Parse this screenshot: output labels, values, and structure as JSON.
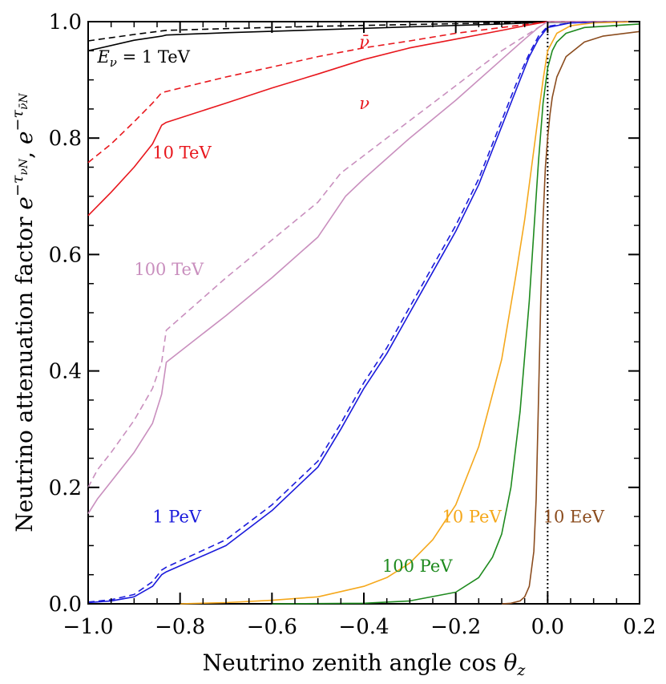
{
  "chart_data": {
    "type": "line",
    "xlabel": "Neutrino zenith angle cos",
    "xlabel_symbol": "θ",
    "xlabel_sub": "z",
    "ylabel": "Neutrino attenuation factor",
    "ylabel_expr1_base": "e",
    "ylabel_expr1_sup": "−τ",
    "ylabel_expr1_sub": "νN",
    "ylabel_sep": ", ",
    "ylabel_expr2_base": "e",
    "ylabel_expr2_sup": "−τ",
    "ylabel_expr2_sub": "ν̄N",
    "xlim": [
      -1.0,
      0.2
    ],
    "ylim": [
      0.0,
      1.0
    ],
    "xticks": [
      -1.0,
      -0.8,
      -0.6,
      -0.4,
      -0.2,
      0.0,
      0.2
    ],
    "xtick_labels": [
      "−1.0",
      "−0.8",
      "−0.6",
      "−0.4",
      "−0.2",
      "0.0",
      "0.2"
    ],
    "yticks": [
      0.0,
      0.2,
      0.4,
      0.6,
      0.8,
      1.0
    ],
    "ytick_labels": [
      "0.0",
      "0.2",
      "0.4",
      "0.6",
      "0.8",
      "1.0"
    ],
    "reference_line": {
      "x": 0.0,
      "style": "dotted",
      "color": "#000000"
    },
    "series": [
      {
        "name": "1 TeV ν",
        "color": "#000000",
        "dash": false,
        "x": [
          -1.0,
          -0.9,
          -0.84,
          -0.83,
          -0.7,
          -0.5,
          -0.3,
          -0.1,
          0.0,
          0.2
        ],
        "y": [
          0.95,
          0.968,
          0.975,
          0.977,
          0.981,
          0.986,
          0.991,
          0.996,
          0.999,
          1.0
        ]
      },
      {
        "name": "1 TeV ν̄",
        "color": "#000000",
        "dash": true,
        "x": [
          -1.0,
          -0.9,
          -0.84,
          -0.83,
          -0.7,
          -0.5,
          -0.3,
          -0.1,
          0.0,
          0.2
        ],
        "y": [
          0.967,
          0.978,
          0.984,
          0.985,
          0.988,
          0.992,
          0.995,
          0.998,
          1.0,
          1.0
        ]
      },
      {
        "name": "10 TeV ν",
        "color": "#e8171d",
        "dash": false,
        "x": [
          -1.0,
          -0.95,
          -0.9,
          -0.86,
          -0.84,
          -0.83,
          -0.7,
          -0.6,
          -0.5,
          -0.4,
          -0.3,
          -0.2,
          -0.1,
          -0.05,
          0.0,
          0.2
        ],
        "y": [
          0.667,
          0.707,
          0.75,
          0.79,
          0.822,
          0.827,
          0.86,
          0.886,
          0.91,
          0.935,
          0.955,
          0.97,
          0.985,
          0.993,
          1.0,
          1.0
        ]
      },
      {
        "name": "10 TeV ν̄",
        "color": "#e8171d",
        "dash": true,
        "x": [
          -1.0,
          -0.95,
          -0.9,
          -0.86,
          -0.84,
          -0.83,
          -0.7,
          -0.6,
          -0.5,
          -0.4,
          -0.3,
          -0.2,
          -0.1,
          0.0,
          0.2
        ],
        "y": [
          0.758,
          0.79,
          0.828,
          0.86,
          0.878,
          0.88,
          0.905,
          0.922,
          0.94,
          0.955,
          0.967,
          0.98,
          0.99,
          1.0,
          1.0
        ]
      },
      {
        "name": "100 TeV ν",
        "color": "#c98fbe",
        "dash": false,
        "x": [
          -1.0,
          -0.98,
          -0.95,
          -0.9,
          -0.86,
          -0.84,
          -0.83,
          -0.7,
          -0.6,
          -0.5,
          -0.44,
          -0.4,
          -0.3,
          -0.2,
          -0.1,
          -0.05,
          -0.02,
          0.0,
          0.2
        ],
        "y": [
          0.155,
          0.18,
          0.21,
          0.26,
          0.31,
          0.36,
          0.415,
          0.495,
          0.56,
          0.63,
          0.7,
          0.73,
          0.8,
          0.865,
          0.935,
          0.97,
          0.99,
          1.0,
          1.0
        ]
      },
      {
        "name": "100 TeV ν̄",
        "color": "#c98fbe",
        "dash": true,
        "x": [
          -1.0,
          -0.98,
          -0.95,
          -0.9,
          -0.86,
          -0.84,
          -0.83,
          -0.7,
          -0.6,
          -0.5,
          -0.45,
          -0.4,
          -0.3,
          -0.2,
          -0.1,
          -0.05,
          0.0,
          0.2
        ],
        "y": [
          0.2,
          0.23,
          0.26,
          0.315,
          0.37,
          0.415,
          0.47,
          0.56,
          0.625,
          0.69,
          0.74,
          0.77,
          0.83,
          0.89,
          0.95,
          0.975,
          1.0,
          1.0
        ]
      },
      {
        "name": "1 PeV ν",
        "color": "#1a1adb",
        "dash": false,
        "x": [
          -1.0,
          -0.95,
          -0.9,
          -0.86,
          -0.84,
          -0.83,
          -0.7,
          -0.6,
          -0.5,
          -0.45,
          -0.4,
          -0.35,
          -0.3,
          -0.25,
          -0.2,
          -0.15,
          -0.1,
          -0.06,
          -0.04,
          -0.02,
          0.0,
          0.05,
          0.2
        ],
        "y": [
          0.002,
          0.005,
          0.012,
          0.03,
          0.05,
          0.055,
          0.1,
          0.16,
          0.235,
          0.3,
          0.37,
          0.43,
          0.5,
          0.57,
          0.64,
          0.72,
          0.82,
          0.9,
          0.94,
          0.97,
          0.99,
          0.998,
          1.0
        ]
      },
      {
        "name": "1 PeV ν̄",
        "color": "#1a1adb",
        "dash": true,
        "x": [
          -1.0,
          -0.95,
          -0.9,
          -0.86,
          -0.84,
          -0.83,
          -0.7,
          -0.6,
          -0.5,
          -0.45,
          -0.4,
          -0.35,
          -0.3,
          -0.25,
          -0.2,
          -0.15,
          -0.1,
          -0.06,
          -0.04,
          -0.02,
          0.0,
          0.05,
          0.2
        ],
        "y": [
          0.003,
          0.007,
          0.016,
          0.038,
          0.058,
          0.063,
          0.11,
          0.17,
          0.245,
          0.31,
          0.38,
          0.44,
          0.51,
          0.58,
          0.65,
          0.73,
          0.83,
          0.91,
          0.945,
          0.975,
          0.992,
          0.998,
          1.0
        ]
      },
      {
        "name": "10 PeV ν",
        "color": "#f5a81c",
        "dash": false,
        "x": [
          -0.8,
          -0.7,
          -0.6,
          -0.5,
          -0.4,
          -0.35,
          -0.3,
          -0.25,
          -0.2,
          -0.15,
          -0.1,
          -0.07,
          -0.05,
          -0.03,
          -0.01,
          0.0,
          0.02,
          0.05,
          0.1,
          0.2
        ],
        "y": [
          0.0,
          0.002,
          0.006,
          0.012,
          0.03,
          0.045,
          0.07,
          0.11,
          0.17,
          0.27,
          0.42,
          0.56,
          0.66,
          0.78,
          0.9,
          0.95,
          0.98,
          0.993,
          0.998,
          1.0
        ]
      },
      {
        "name": "100 PeV ν",
        "color": "#1e8a1e",
        "dash": false,
        "x": [
          -0.6,
          -0.4,
          -0.3,
          -0.2,
          -0.15,
          -0.12,
          -0.1,
          -0.08,
          -0.06,
          -0.04,
          -0.03,
          -0.02,
          -0.01,
          0.0,
          0.01,
          0.02,
          0.04,
          0.08,
          0.2
        ],
        "y": [
          0.0,
          0.001,
          0.005,
          0.02,
          0.045,
          0.08,
          0.12,
          0.2,
          0.33,
          0.52,
          0.64,
          0.76,
          0.86,
          0.92,
          0.95,
          0.965,
          0.98,
          0.99,
          0.996
        ]
      },
      {
        "name": "10 EeV ν",
        "color": "#8b4c1e",
        "dash": false,
        "x": [
          -0.1,
          -0.08,
          -0.06,
          -0.05,
          -0.04,
          -0.03,
          -0.025,
          -0.02,
          -0.015,
          -0.01,
          -0.005,
          0.0,
          0.005,
          0.01,
          0.02,
          0.04,
          0.08,
          0.12,
          0.2
        ],
        "y": [
          0.0,
          0.001,
          0.005,
          0.012,
          0.03,
          0.09,
          0.18,
          0.35,
          0.52,
          0.66,
          0.75,
          0.8,
          0.84,
          0.87,
          0.905,
          0.94,
          0.965,
          0.975,
          0.983
        ]
      }
    ],
    "annotations": [
      {
        "name": "label-1tev",
        "sym": "E",
        "sym_sub": "ν",
        "text": " = 1 TeV",
        "color": "#000000",
        "x": -0.98,
        "y": 0.93
      },
      {
        "name": "label-nubar",
        "text": "ν̄",
        "color": "#e8171d",
        "x": -0.41,
        "y": 0.955
      },
      {
        "name": "label-nu",
        "text": "ν",
        "color": "#e8171d",
        "x": -0.41,
        "y": 0.85
      },
      {
        "name": "label-10tev",
        "text": "10 TeV",
        "color": "#e8171d",
        "x": -0.86,
        "y": 0.765
      },
      {
        "name": "label-100tev",
        "text": "100 TeV",
        "color": "#c98fbe",
        "x": -0.9,
        "y": 0.565
      },
      {
        "name": "label-1pev",
        "text": "1 PeV",
        "color": "#1a1adb",
        "x": -0.86,
        "y": 0.14
      },
      {
        "name": "label-10pev",
        "text": "10 PeV",
        "color": "#f5a81c",
        "x": -0.23,
        "y": 0.14
      },
      {
        "name": "label-100pev",
        "text": "100 PeV",
        "color": "#1e8a1e",
        "x": -0.36,
        "y": 0.055
      },
      {
        "name": "label-10eev",
        "text": "10 EeV",
        "color": "#8b4c1e",
        "x": -0.01,
        "y": 0.14
      }
    ]
  }
}
